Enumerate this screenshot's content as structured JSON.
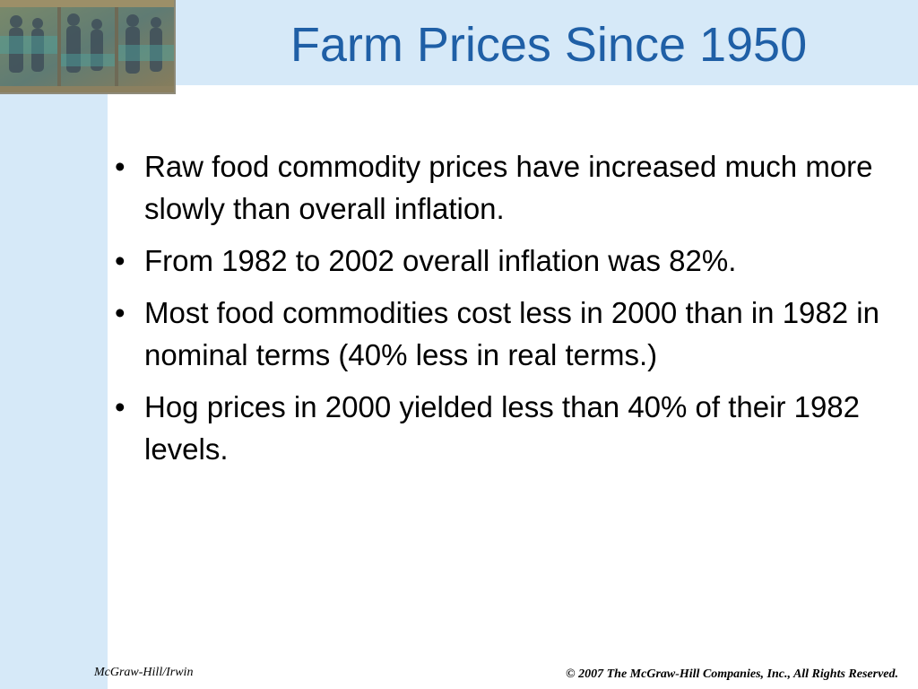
{
  "slide": {
    "title": "Farm Prices Since 1950",
    "bullet_symbol": "•",
    "bullets": [
      "Raw food commodity prices have increased much more slowly than overall inflation.",
      "From 1982 to 2002 overall inflation was 82%.",
      "Most food commodities cost less in 2000 than in 1982 in nominal terms (40% less in real terms.)",
      "Hog prices in 2000 yielded less than 40% of their 1982 levels."
    ]
  },
  "footer": {
    "left": "McGraw-Hill/Irwin",
    "right": "© 2007 The McGraw-Hill Companies, Inc., All Rights Reserved."
  },
  "colors": {
    "title": "#1f5fa6",
    "background_band": "#d6e9f8",
    "text": "#000000"
  }
}
